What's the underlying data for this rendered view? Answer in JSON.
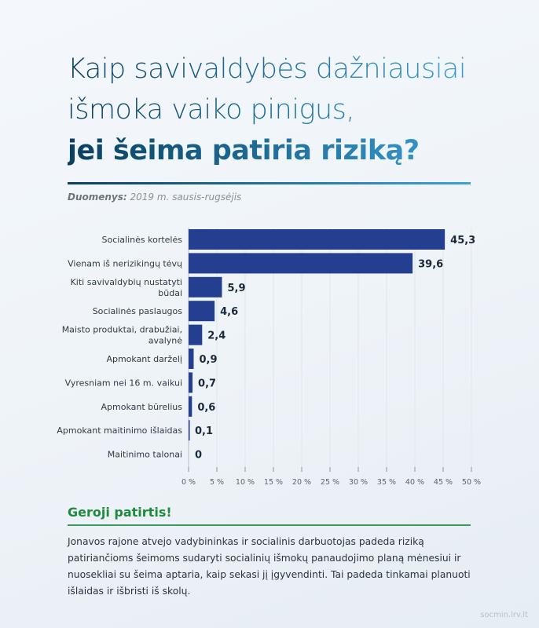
{
  "title": {
    "line1": "Kaip savivaldybės dažniausiai",
    "line2": "išmoka vaiko pinigus,",
    "line3": "jei šeima patiria riziką?"
  },
  "source": {
    "label": "Duomenys:",
    "value": "2019 m. sausis-rugsėjis"
  },
  "chart_data": {
    "type": "bar",
    "orientation": "horizontal",
    "categories": [
      "Socialinės kortelės",
      "Vienam iš nerizikingų tėvų",
      "Kiti savivaldybių nustatyti būdai",
      "Socialinės paslaugos",
      "Maisto produktai, drabužiai, avalynė",
      "Apmokant darželį",
      "Vyresniam nei 16 m. vaikui",
      "Apmokant būrelius",
      "Apmokant maitinimo išlaidas",
      "Maitinimo talonai"
    ],
    "category_lines": [
      [
        "Socialinės kortelės"
      ],
      [
        "Vienam iš nerizikingų tėvų"
      ],
      [
        "Kiti savivaldybių nustatyti",
        "būdai"
      ],
      [
        "Socialinės paslaugos"
      ],
      [
        "Maisto produktai, drabužiai,",
        "avalynė"
      ],
      [
        "Apmokant darželį"
      ],
      [
        "Vyresniam nei 16 m. vaikui"
      ],
      [
        "Apmokant būrelius"
      ],
      [
        "Apmokant maitinimo išlaidas"
      ],
      [
        "Maitinimo talonai"
      ]
    ],
    "values": [
      45.3,
      39.6,
      5.9,
      4.6,
      2.4,
      0.9,
      0.7,
      0.6,
      0.1,
      0
    ],
    "value_labels": [
      "45,3",
      "39,6",
      "5,9",
      "4,6",
      "2,4",
      "0,9",
      "0,7",
      "0,6",
      "0,1",
      "0"
    ],
    "xlim": [
      0,
      50
    ],
    "xticks": [
      0,
      5,
      10,
      15,
      20,
      25,
      30,
      35,
      40,
      45,
      50
    ],
    "xtick_labels": [
      "0 %",
      "5 %",
      "10 %",
      "15 %",
      "20 %",
      "25 %",
      "30 %",
      "35 %",
      "40 %",
      "45 %",
      "50 %"
    ],
    "grid": true,
    "bar_color": "#243f8f",
    "title": "",
    "xlabel": "",
    "ylabel": ""
  },
  "good_practice": {
    "heading": "Geroji patirtis!",
    "text": "Jonavos rajone atvejo vadybininkas ir socialinis darbuotojas padeda riziką patiriančioms šeimoms sudaryti socialinių išmokų panaudojimo planą mėnesiui ir nuosekliai su šeima aptaria, kaip sekasi jį įgyvendinti. Tai padeda tinkamai planuoti išlaidas ir išbristi iš skolų."
  },
  "footer": "socmin.lrv.lt"
}
